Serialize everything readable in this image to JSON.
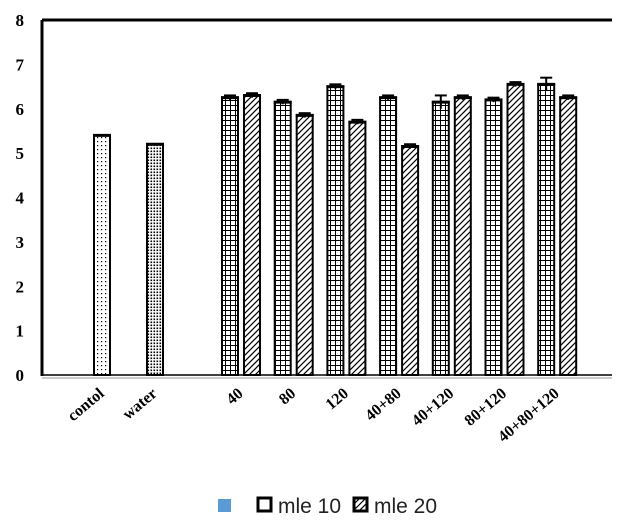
{
  "chart_data": {
    "type": "bar",
    "title": "",
    "xlabel": "",
    "ylabel": "",
    "ylim": [
      0,
      8
    ],
    "yticks": [
      0,
      1,
      2,
      3,
      4,
      5,
      6,
      7,
      8
    ],
    "grid": false,
    "legend_position": "bottom",
    "categories": [
      "contol",
      "water",
      "40",
      "80",
      "120",
      "40+80",
      "40+120",
      "80+120",
      "40+80+120"
    ],
    "controls": [
      {
        "category": "contol",
        "value": 5.4,
        "pattern": "dots"
      },
      {
        "category": "water",
        "value": 5.2,
        "pattern": "dense-dots"
      }
    ],
    "series": [
      {
        "name": "mle 10",
        "pattern": "grid",
        "values": [
          null,
          null,
          6.25,
          6.15,
          6.5,
          6.25,
          6.15,
          6.2,
          6.55
        ],
        "errors": [
          null,
          null,
          0.05,
          0.05,
          0.05,
          0.05,
          0.15,
          0.05,
          0.15
        ]
      },
      {
        "name": "mle 20",
        "pattern": "diagonal",
        "values": [
          null,
          null,
          6.3,
          5.85,
          5.7,
          5.15,
          6.25,
          6.55,
          6.25
        ],
        "errors": [
          null,
          null,
          0.05,
          0.05,
          0.05,
          0.05,
          0.05,
          0.05,
          0.05
        ]
      }
    ],
    "legend": {
      "marker_color": "#5b9bd5",
      "entries": [
        "mle 10",
        "mle 20"
      ]
    }
  }
}
